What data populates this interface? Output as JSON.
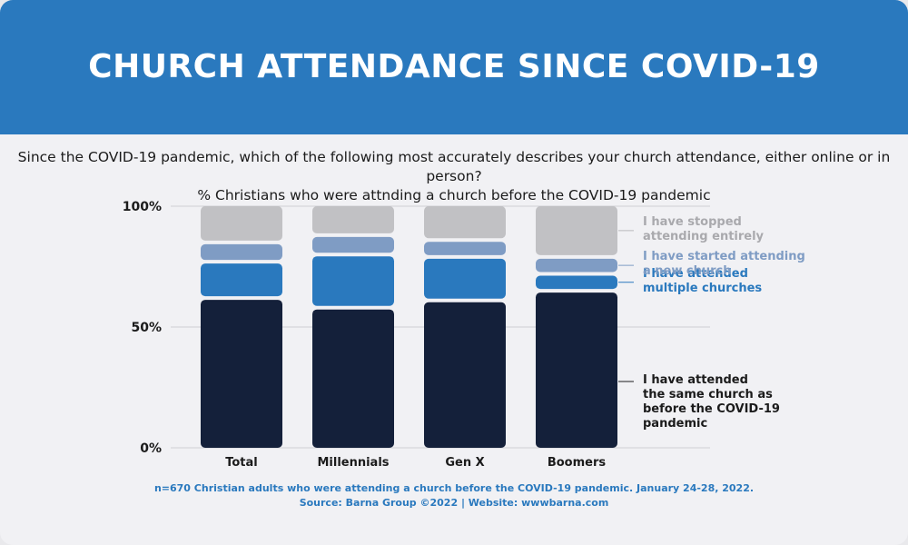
{
  "header": {
    "title": "CHURCH ATTENDANCE SINCE COVID-19"
  },
  "question": {
    "line1": "Since the COVID-19 pandemic, which of the following most accurately describes your church attendance, either online or in person?",
    "line2": "% Christians who were attnding a church before the COVID-19 pandemic"
  },
  "chart_data": {
    "type": "bar",
    "stacked": true,
    "title": "",
    "xlabel": "",
    "ylabel": "",
    "ylim": [
      0,
      100
    ],
    "yticks": [
      {
        "value": 0,
        "label": "0%"
      },
      {
        "value": 50,
        "label": "50%"
      },
      {
        "value": 100,
        "label": "100%"
      }
    ],
    "categories": [
      "Total",
      "Millennials",
      "Gen X",
      "Boomers"
    ],
    "series": [
      {
        "name": "I have attended the same church as before the COVID-19 pandemic",
        "label_lines": [
          "I have attended",
          "the same church as",
          "before the COVID-19",
          "pandemic"
        ],
        "color": "#14203a",
        "values": [
          62,
          58,
          61,
          65
        ]
      },
      {
        "name": "I have attended multiple churches",
        "label_lines": [
          "I have attended",
          "multiple churches"
        ],
        "color": "#2a79be",
        "values": [
          15,
          22,
          18,
          7
        ]
      },
      {
        "name": "I have started attending a new church",
        "label_lines": [
          "I have started attending",
          "a new church"
        ],
        "color": "#7f9cc4",
        "values": [
          8,
          8,
          7,
          7
        ]
      },
      {
        "name": "I have stopped attending entirely",
        "label_lines": [
          "I have stopped",
          "attending entirely"
        ],
        "color": "#c1c1c4",
        "values": [
          15,
          12,
          14,
          21
        ]
      }
    ]
  },
  "footer": {
    "line1": "n=670 Christian adults who were attending a church before the COVID-19 pandemic. January 24-28, 2022.",
    "line2": "Source: Barna Group ©2022 | Website: wwwbarna.com"
  }
}
